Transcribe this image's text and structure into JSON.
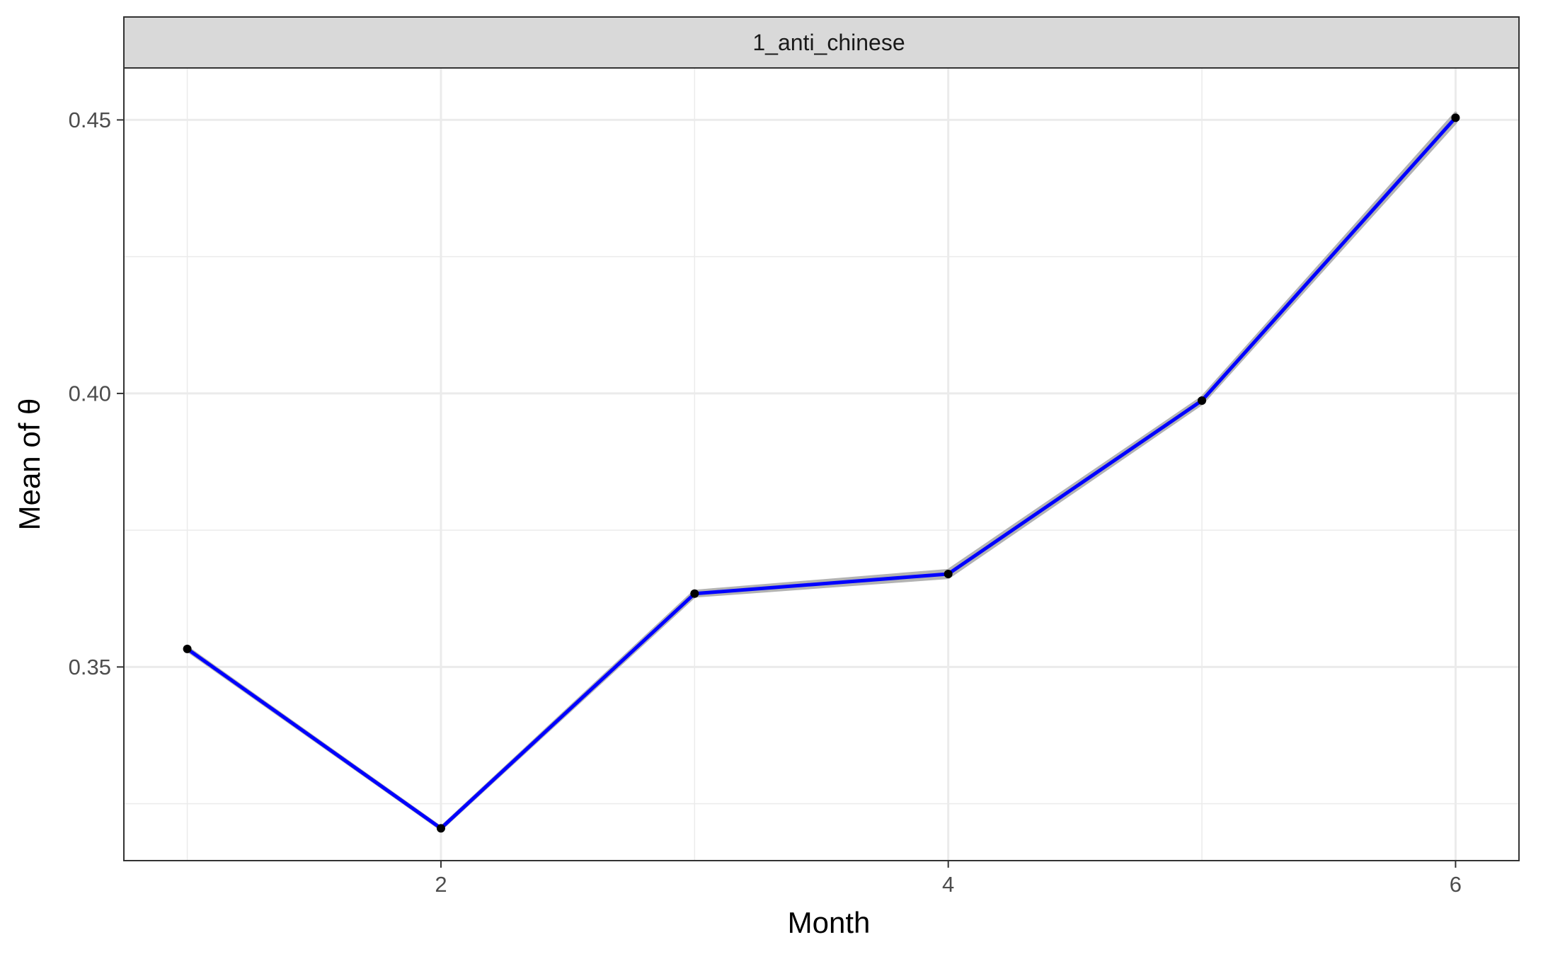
{
  "chart_data": {
    "type": "line",
    "facet_label": "1_anti_chinese",
    "xlabel": "Month",
    "ylabel": "Mean of θ",
    "x_ticks": [
      2,
      4,
      6
    ],
    "x_tick_labels": [
      "2",
      "4",
      "6"
    ],
    "y_ticks": [
      0.35,
      0.4,
      0.45
    ],
    "y_tick_labels": [
      "0.35",
      "0.40",
      "0.45"
    ],
    "xlim": [
      0.75,
      6.25
    ],
    "ylim": [
      0.3146,
      0.4595
    ],
    "grid": true,
    "legend": "none",
    "series": [
      {
        "x": [
          1,
          2,
          3,
          4,
          5,
          6
        ],
        "y": [
          0.3533,
          0.3205,
          0.3634,
          0.367,
          0.3987,
          0.4504
        ],
        "y_lower": [
          0.3531,
          0.3204,
          0.363,
          0.3664,
          0.3982,
          0.4496
        ],
        "y_upper": [
          0.3535,
          0.3206,
          0.3638,
          0.3676,
          0.3992,
          0.4512
        ],
        "line_color": "#0000FF",
        "band_color": "#B3B3B3",
        "point_color": "#000000"
      }
    ],
    "colors": {
      "strip_fill": "#D9D9D9",
      "strip_border": "#333333",
      "panel_border": "#333333",
      "grid": "#EBEBEB",
      "axis_text": "#4D4D4D",
      "title_text": "#000000"
    }
  }
}
